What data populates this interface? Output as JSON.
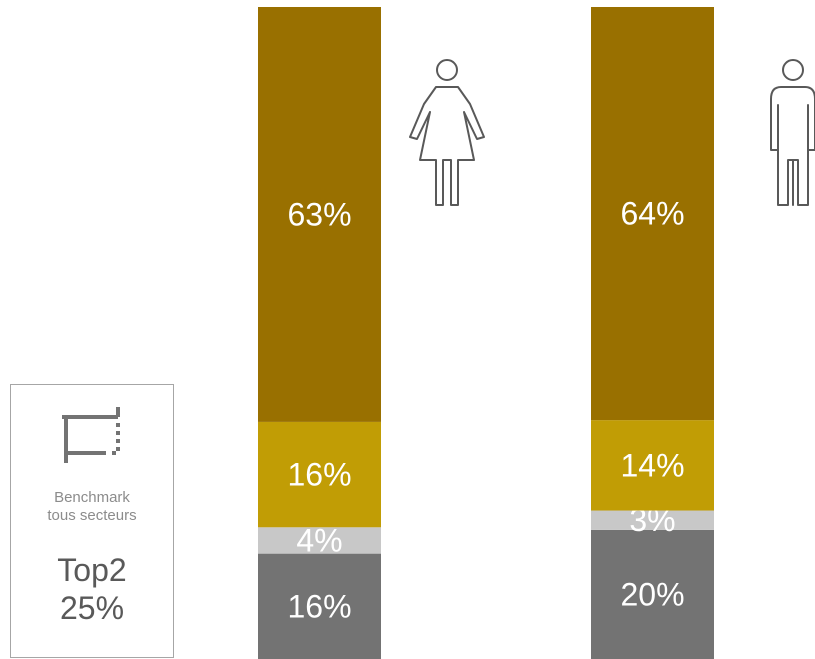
{
  "chart_data": {
    "type": "bar",
    "stacked": true,
    "categories": [
      "female-icon",
      "male-icon"
    ],
    "series": [
      {
        "values": [
          16,
          20
        ],
        "color": "#737373"
      },
      {
        "values": [
          4,
          3
        ],
        "color": "#c8c8c8"
      },
      {
        "values": [
          16,
          14
        ],
        "color": "#c19d05"
      },
      {
        "values": [
          63,
          64
        ],
        "color": "#997000"
      }
    ],
    "labels": [
      [
        "16%",
        "4%",
        "16%",
        "63%"
      ],
      [
        "20%",
        "3%",
        "14%",
        "64%"
      ]
    ],
    "ylim": [
      0,
      100
    ],
    "title": "",
    "xlabel": "",
    "ylabel": ""
  },
  "benchmark": {
    "icon": "crop-icon",
    "label_line1": "Benchmark",
    "label_line2": "tous secteurs",
    "value_line1": "Top2",
    "value_line2": "25%"
  },
  "icons": {
    "female": "female-icon",
    "male": "male-icon",
    "color": "#595959"
  }
}
